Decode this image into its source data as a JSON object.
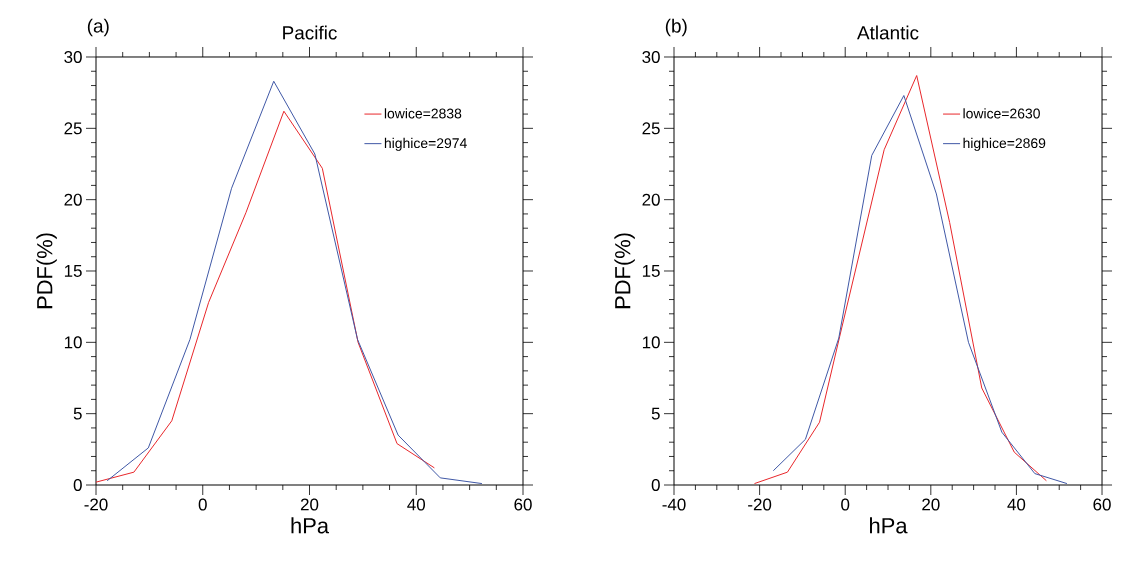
{
  "chart_data": [
    {
      "type": "line",
      "title": "Pacific",
      "annotations": [
        "(a)"
      ],
      "xlabel": "hPa",
      "ylabel": "PDF(%)",
      "xlim": [
        -20,
        60
      ],
      "ylim": [
        0,
        30
      ],
      "xticks": [
        -20,
        0,
        20,
        40,
        60
      ],
      "yticks": [
        0,
        5,
        10,
        15,
        20,
        25,
        30
      ],
      "grid": false,
      "legend": "top right",
      "marker": "none",
      "line_style": "solid",
      "series": [
        {
          "name": "lowice=2838",
          "color": "#e8262a",
          "x": [
            -20,
            -12.9,
            -5.8,
            1.1,
            8.1,
            15.2,
            22.4,
            29.1,
            36.4,
            43.4
          ],
          "values": [
            0.2,
            0.9,
            4.5,
            12.8,
            19.1,
            26.2,
            22.2,
            10.0,
            2.9,
            1.2
          ]
        },
        {
          "name": "highice=2974",
          "color": "#3f57a6",
          "x": [
            -17.9,
            -10.2,
            -2.4,
            5.4,
            13.3,
            21.0,
            29.0,
            36.6,
            44.5,
            52.3
          ],
          "values": [
            0.3,
            2.6,
            10.2,
            20.8,
            28.3,
            23.2,
            10.2,
            3.5,
            0.5,
            0.1
          ]
        }
      ]
    },
    {
      "type": "line",
      "title": "Atlantic",
      "annotations": [
        "(b)"
      ],
      "xlabel": "hPa",
      "ylabel": "PDF(%)",
      "xlim": [
        -40,
        60
      ],
      "ylim": [
        0,
        30
      ],
      "xticks": [
        -40,
        -20,
        0,
        20,
        40,
        60
      ],
      "yticks": [
        0,
        5,
        10,
        15,
        20,
        25,
        30
      ],
      "grid": false,
      "legend": "top right",
      "marker": "none",
      "line_style": "solid",
      "series": [
        {
          "name": "lowice=2630",
          "color": "#e8262a",
          "x": [
            -21.2,
            -13.5,
            -6.0,
            -1.3,
            9.1,
            16.7,
            24.4,
            31.9,
            39.5,
            47.0
          ],
          "values": [
            0.1,
            0.9,
            4.4,
            10.4,
            23.5,
            28.7,
            18.4,
            6.8,
            2.3,
            0.3
          ]
        },
        {
          "name": "highice=2869",
          "color": "#3f57a6",
          "x": [
            -16.8,
            -9.3,
            -1.5,
            6.2,
            13.7,
            21.3,
            28.8,
            36.6,
            44.3,
            51.8
          ],
          "values": [
            1.0,
            3.2,
            10.3,
            23.1,
            27.3,
            20.4,
            10.0,
            3.7,
            0.8,
            0.1
          ]
        }
      ]
    }
  ]
}
